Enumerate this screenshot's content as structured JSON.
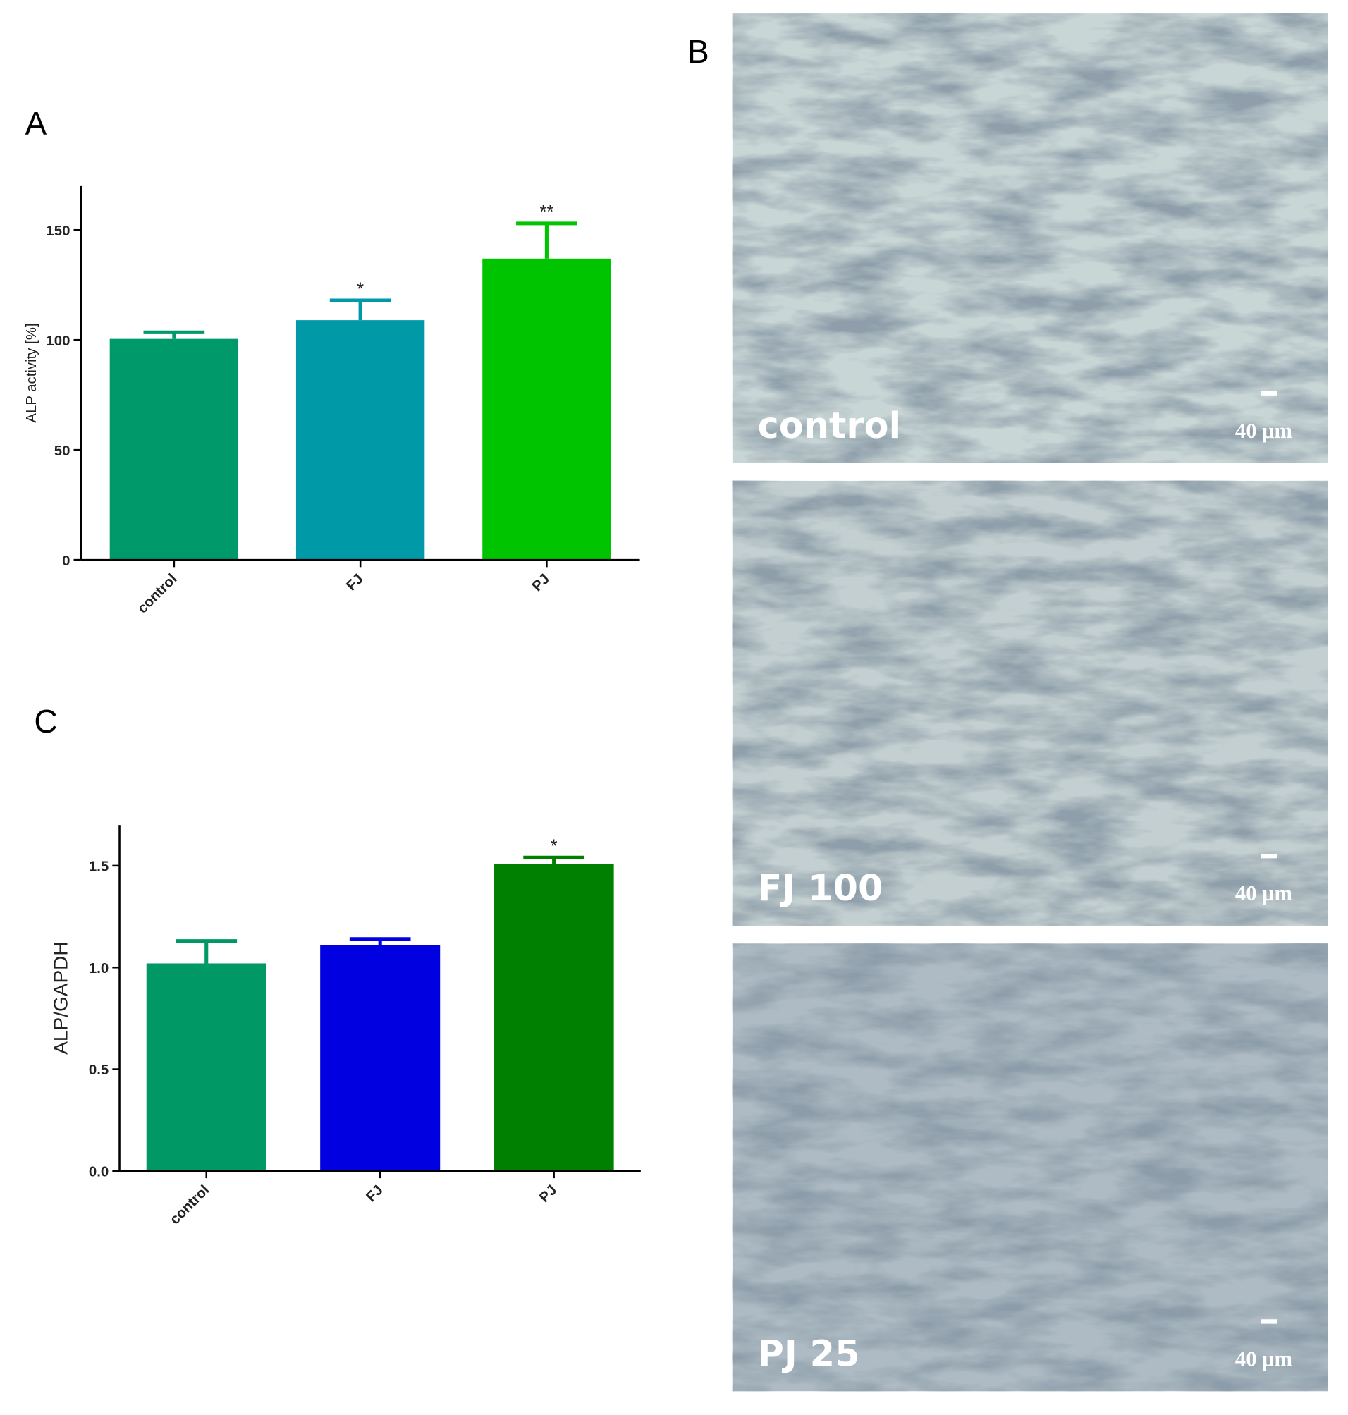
{
  "chart_data": [
    {
      "type": "bar",
      "panel_label": "A",
      "ylabel": "ALP activity [%]",
      "categories": [
        "control",
        "FJ",
        "PJ"
      ],
      "values": [
        100.5,
        109,
        137
      ],
      "errors": [
        3,
        9,
        16
      ],
      "colors": [
        "#00996a",
        "#0099a8",
        "#00c400"
      ],
      "annotations": [
        null,
        "*",
        "**"
      ],
      "ylim": [
        0,
        170
      ],
      "yticks": [
        0,
        50,
        100,
        150
      ]
    },
    {
      "type": "bar",
      "panel_label": "C",
      "ylabel": "ALP/GAPDH",
      "categories": [
        "control",
        "FJ",
        "PJ"
      ],
      "values": [
        1.02,
        1.11,
        1.51
      ],
      "errors": [
        0.11,
        0.03,
        0.03
      ],
      "colors": [
        "#009966",
        "#0000e0",
        "#008000"
      ],
      "annotations": [
        null,
        null,
        "*"
      ],
      "ylim": [
        0,
        1.7
      ],
      "yticks": [
        {
          "value": 0,
          "label": "0.0"
        },
        0.5,
        {
          "value": 1,
          "label": "1.0"
        },
        1.5
      ]
    }
  ],
  "micrographs": {
    "panel_label": "B",
    "images": [
      {
        "label": "control",
        "scale_bar": "40 μm"
      },
      {
        "label": "FJ 100",
        "scale_bar": "40 μm"
      },
      {
        "label": "PJ 25",
        "scale_bar": "40 μm"
      }
    ]
  }
}
